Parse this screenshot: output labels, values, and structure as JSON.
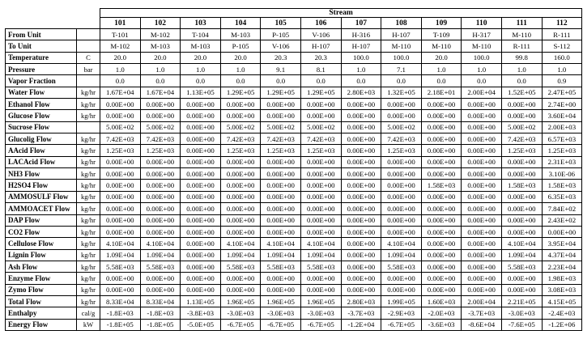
{
  "table": {
    "title": "Stream",
    "columns": [
      "101",
      "102",
      "103",
      "104",
      "105",
      "106",
      "107",
      "108",
      "109",
      "110",
      "111",
      "112"
    ],
    "rows": [
      {
        "label": "From Unit",
        "unit": "",
        "values": [
          "T-101",
          "M-102",
          "T-104",
          "M-103",
          "P-105",
          "V-106",
          "H-316",
          "H-107",
          "T-109",
          "H-317",
          "M-110",
          "R-111"
        ]
      },
      {
        "label": "To Unit",
        "unit": "",
        "values": [
          "M-102",
          "M-103",
          "M-103",
          "P-105",
          "V-106",
          "H-107",
          "H-107",
          "M-110",
          "M-110",
          "M-110",
          "R-111",
          "S-112"
        ]
      },
      {
        "label": "Temperature",
        "unit": "C",
        "values": [
          "20.0",
          "20.0",
          "20.0",
          "20.0",
          "20.3",
          "20.3",
          "100.0",
          "100.0",
          "20.0",
          "100.0",
          "99.8",
          "160.0"
        ]
      },
      {
        "label": "Pressure",
        "unit": "bar",
        "values": [
          "1.0",
          "1.0",
          "1.0",
          "1.0",
          "9.1",
          "8.1",
          "1.0",
          "7.1",
          "1.0",
          "1.0",
          "1.0",
          "1.0"
        ]
      },
      {
        "label": "Vapor Fraction",
        "unit": "",
        "values": [
          "0.0",
          "0.0",
          "0.0",
          "0.0",
          "0.0",
          "0.0",
          "0.0",
          "0.0",
          "0.0",
          "0.0",
          "0.0",
          "0.9"
        ]
      },
      {
        "label": "Water Flow",
        "unit": "kg/hr",
        "values": [
          "1.67E+04",
          "1.67E+04",
          "1.13E+05",
          "1.29E+05",
          "1.29E+05",
          "1.29E+05",
          "2.80E+03",
          "1.32E+05",
          "2.18E+01",
          "2.00E+04",
          "1.52E+05",
          "2.47E+05"
        ]
      },
      {
        "label": "Ethanol Flow",
        "unit": "kg/hr",
        "values": [
          "0.00E+00",
          "0.00E+00",
          "0.00E+00",
          "0.00E+00",
          "0.00E+00",
          "0.00E+00",
          "0.00E+00",
          "0.00E+00",
          "0.00E+00",
          "0.00E+00",
          "0.00E+00",
          "2.74E+00"
        ]
      },
      {
        "label": "Glucose Flow",
        "unit": "kg/hr",
        "values": [
          "0.00E+00",
          "0.00E+00",
          "0.00E+00",
          "0.00E+00",
          "0.00E+00",
          "0.00E+00",
          "0.00E+00",
          "0.00E+00",
          "0.00E+00",
          "0.00E+00",
          "0.00E+00",
          "3.60E+04"
        ]
      },
      {
        "label": "Sucrose Flow",
        "unit": "",
        "values": [
          "5.00E+02",
          "5.00E+02",
          "0.00E+00",
          "5.00E+02",
          "5.00E+02",
          "5.00E+02",
          "0.00E+00",
          "5.00E+02",
          "0.00E+00",
          "0.00E+00",
          "5.00E+02",
          "2.00E+03"
        ]
      },
      {
        "label": "Glucolig Flow",
        "unit": "kg/hr",
        "values": [
          "7.42E+03",
          "7.42E+03",
          "0.00E+00",
          "7.42E+03",
          "7.42E+03",
          "7.42E+03",
          "0.00E+00",
          "7.42E+03",
          "0.00E+00",
          "0.00E+00",
          "7.42E+03",
          "6.57E+03"
        ]
      },
      {
        "label": "AAcid Flow",
        "unit": "kg/hr",
        "values": [
          "1.25E+03",
          "1.25E+03",
          "0.00E+00",
          "1.25E+03",
          "1.25E+03",
          "1.25E+03",
          "0.00E+00",
          "1.25E+03",
          "0.00E+00",
          "0.00E+00",
          "1.25E+03",
          "1.25E+03"
        ]
      },
      {
        "label": "LACAcid Flow",
        "unit": "kg/hr",
        "values": [
          "0.00E+00",
          "0.00E+00",
          "0.00E+00",
          "0.00E+00",
          "0.00E+00",
          "0.00E+00",
          "0.00E+00",
          "0.00E+00",
          "0.00E+00",
          "0.00E+00",
          "0.00E+00",
          "2.31E+03"
        ]
      },
      {
        "label": "NH3 Flow",
        "unit": "kg/hr",
        "values": [
          "0.00E+00",
          "0.00E+00",
          "0.00E+00",
          "0.00E+00",
          "0.00E+00",
          "0.00E+00",
          "0.00E+00",
          "0.00E+00",
          "0.00E+00",
          "0.00E+00",
          "0.00E+00",
          "3.10E-06"
        ]
      },
      {
        "label": "H2SO4 Flow",
        "unit": "kg/hr",
        "values": [
          "0.00E+00",
          "0.00E+00",
          "0.00E+00",
          "0.00E+00",
          "0.00E+00",
          "0.00E+00",
          "0.00E+00",
          "0.00E+00",
          "1.58E+03",
          "0.00E+00",
          "1.58E+03",
          "1.58E+03"
        ]
      },
      {
        "label": "AMMOSULF Flow",
        "unit": "kg/hr",
        "values": [
          "0.00E+00",
          "0.00E+00",
          "0.00E+00",
          "0.00E+00",
          "0.00E+00",
          "0.00E+00",
          "0.00E+00",
          "0.00E+00",
          "0.00E+00",
          "0.00E+00",
          "0.00E+00",
          "6.35E+03"
        ]
      },
      {
        "label": "AMMOACET Flow",
        "unit": "kg/hr",
        "values": [
          "0.00E+00",
          "0.00E+00",
          "0.00E+00",
          "0.00E+00",
          "0.00E+00",
          "0.00E+00",
          "0.00E+00",
          "0.00E+00",
          "0.00E+00",
          "0.00E+00",
          "0.00E+00",
          "7.84E+02"
        ]
      },
      {
        "label": "DAP Flow",
        "unit": "kg/hr",
        "values": [
          "0.00E+00",
          "0.00E+00",
          "0.00E+00",
          "0.00E+00",
          "0.00E+00",
          "0.00E+00",
          "0.00E+00",
          "0.00E+00",
          "0.00E+00",
          "0.00E+00",
          "0.00E+00",
          "2.43E+02"
        ]
      },
      {
        "label": "CO2 Flow",
        "unit": "kg/hr",
        "values": [
          "0.00E+00",
          "0.00E+00",
          "0.00E+00",
          "0.00E+00",
          "0.00E+00",
          "0.00E+00",
          "0.00E+00",
          "0.00E+00",
          "0.00E+00",
          "0.00E+00",
          "0.00E+00",
          "0.00E+00"
        ]
      },
      {
        "label": "Cellulose Flow",
        "unit": "kg/hr",
        "values": [
          "4.10E+04",
          "4.10E+04",
          "0.00E+00",
          "4.10E+04",
          "4.10E+04",
          "4.10E+04",
          "0.00E+00",
          "4.10E+04",
          "0.00E+00",
          "0.00E+00",
          "4.10E+04",
          "3.95E+04"
        ]
      },
      {
        "label": "Lignin Flow",
        "unit": "kg/hr",
        "values": [
          "1.09E+04",
          "1.09E+04",
          "0.00E+00",
          "1.09E+04",
          "1.09E+04",
          "1.09E+04",
          "0.00E+00",
          "1.09E+04",
          "0.00E+00",
          "0.00E+00",
          "1.09E+04",
          "4.37E+04"
        ]
      },
      {
        "label": "Ash Flow",
        "unit": "kg/hr",
        "values": [
          "5.58E+03",
          "5.58E+03",
          "0.00E+00",
          "5.58E+03",
          "5.58E+03",
          "5.58E+03",
          "0.00E+00",
          "5.58E+03",
          "0.00E+00",
          "0.00E+00",
          "5.58E+03",
          "2.23E+04"
        ]
      },
      {
        "label": "Enzyme Flow",
        "unit": "kg/hr",
        "values": [
          "0.00E+00",
          "0.00E+00",
          "0.00E+00",
          "0.00E+00",
          "0.00E+00",
          "0.00E+00",
          "0.00E+00",
          "0.00E+00",
          "0.00E+00",
          "0.00E+00",
          "0.00E+00",
          "1.98E+03"
        ]
      },
      {
        "label": "Zymo Flow",
        "unit": "kg/hr",
        "values": [
          "0.00E+00",
          "0.00E+00",
          "0.00E+00",
          "0.00E+00",
          "0.00E+00",
          "0.00E+00",
          "0.00E+00",
          "0.00E+00",
          "0.00E+00",
          "0.00E+00",
          "0.00E+00",
          "3.08E+03"
        ]
      },
      {
        "label": "Total Flow",
        "unit": "kg/hr",
        "values": [
          "8.33E+04",
          "8.33E+04",
          "1.13E+05",
          "1.96E+05",
          "1.96E+05",
          "1.96E+05",
          "2.80E+03",
          "1.99E+05",
          "1.60E+03",
          "2.00E+04",
          "2.21E+05",
          "4.15E+05"
        ]
      },
      {
        "label": "Enthalpy",
        "unit": "cal/g",
        "values": [
          "-1.8E+03",
          "-1.8E+03",
          "-3.8E+03",
          "-3.0E+03",
          "-3.0E+03",
          "-3.0E+03",
          "-3.7E+03",
          "-2.9E+03",
          "-2.0E+03",
          "-3.7E+03",
          "-3.0E+03",
          "-2.4E+03"
        ]
      },
      {
        "label": "Energy Flow",
        "unit": "kW",
        "values": [
          "-1.8E+05",
          "-1.8E+05",
          "-5.0E+05",
          "-6.7E+05",
          "-6.7E+05",
          "-6.7E+05",
          "-1.2E+04",
          "-6.7E+05",
          "-3.6E+03",
          "-8.6E+04",
          "-7.6E+05",
          "-1.2E+06"
        ]
      }
    ]
  }
}
